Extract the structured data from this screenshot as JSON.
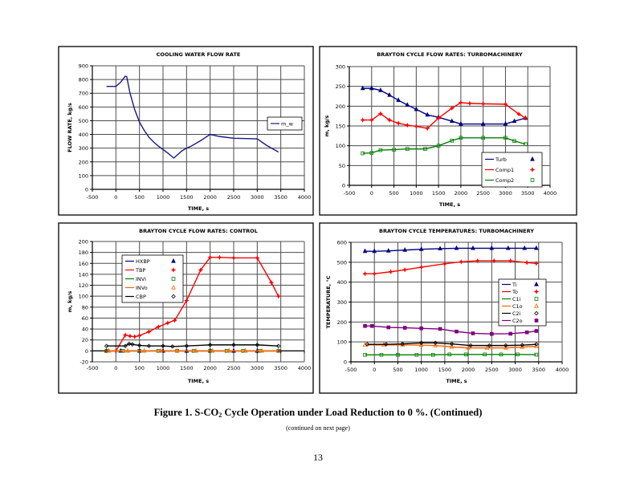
{
  "figure": {
    "caption_parts": [
      "Figure 1. S-CO",
      "2",
      " Cycle Operation under Load Reduction to 0 %.  (Continued)"
    ],
    "continued_note": "(continued on next page)",
    "page_number": "13"
  },
  "chart_data": [
    {
      "type": "line",
      "title": "COOLING WATER FLOW RATE",
      "xlabel": "TIME, s",
      "ylabel": "FLOW RATE, kg/s",
      "xlim": [
        -500,
        4000
      ],
      "ylim": [
        0,
        900
      ],
      "xticks": [
        -500,
        0,
        500,
        1000,
        1500,
        2000,
        2500,
        3000,
        3500,
        4000
      ],
      "yticks": [
        0,
        100,
        200,
        300,
        400,
        500,
        600,
        700,
        800,
        900
      ],
      "grid": true,
      "legend": "right",
      "series": [
        {
          "name": "m_w",
          "color": "#1a1a80",
          "marker": "none",
          "points": [
            [
              -200,
              750
            ],
            [
              0,
              750
            ],
            [
              100,
              780
            ],
            [
              200,
              825
            ],
            [
              230,
              820
            ],
            [
              300,
              700
            ],
            [
              400,
              580
            ],
            [
              500,
              490
            ],
            [
              600,
              430
            ],
            [
              700,
              380
            ],
            [
              800,
              345
            ],
            [
              900,
              315
            ],
            [
              1000,
              290
            ],
            [
              1100,
              265
            ],
            [
              1230,
              228
            ],
            [
              1400,
              280
            ],
            [
              1500,
              300
            ],
            [
              1600,
              315
            ],
            [
              1800,
              355
            ],
            [
              2000,
              400
            ],
            [
              2200,
              385
            ],
            [
              2500,
              372
            ],
            [
              3000,
              368
            ],
            [
              3200,
              320
            ],
            [
              3450,
              272
            ]
          ]
        }
      ]
    },
    {
      "type": "line",
      "title": "BRAYTON CYCLE FLOW RATES: TURBOMACHINERY",
      "xlabel": "TIME, s",
      "ylabel": "m, kg/s",
      "xlim": [
        -500,
        4000
      ],
      "ylim": [
        0,
        300
      ],
      "xticks": [
        -500,
        0,
        500,
        1000,
        1500,
        2000,
        2500,
        3000,
        3500,
        4000
      ],
      "yticks": [
        0,
        50,
        100,
        150,
        200,
        250,
        300
      ],
      "grid": true,
      "legend": "bottom-right",
      "series": [
        {
          "name": "Turb",
          "color": "#000080",
          "marker": "triangle",
          "points": [
            [
              -200,
              245
            ],
            [
              0,
              245
            ],
            [
              200,
              240
            ],
            [
              400,
              228
            ],
            [
              600,
              215
            ],
            [
              800,
              203
            ],
            [
              1000,
              192
            ],
            [
              1250,
              178
            ],
            [
              1500,
              172
            ],
            [
              1800,
              162
            ],
            [
              2000,
              155
            ],
            [
              2500,
              155
            ],
            [
              3000,
              155
            ],
            [
              3200,
              162
            ],
            [
              3450,
              170
            ]
          ]
        },
        {
          "name": "Comp1",
          "color": "#ff0000",
          "marker": "star",
          "points": [
            [
              -200,
              165
            ],
            [
              0,
              165
            ],
            [
              200,
              181
            ],
            [
              400,
              165
            ],
            [
              600,
              157
            ],
            [
              800,
              152
            ],
            [
              1000,
              149
            ],
            [
              1250,
              144
            ],
            [
              1500,
              170
            ],
            [
              1800,
              195
            ],
            [
              2000,
              209
            ],
            [
              2200,
              207
            ],
            [
              2500,
              206
            ],
            [
              3000,
              205
            ],
            [
              3300,
              180
            ],
            [
              3450,
              170
            ]
          ]
        },
        {
          "name": "Comp2",
          "color": "#008000",
          "marker": "square-open",
          "points": [
            [
              -200,
              81
            ],
            [
              0,
              82
            ],
            [
              200,
              89
            ],
            [
              500,
              90
            ],
            [
              800,
              92
            ],
            [
              1200,
              92
            ],
            [
              1500,
              100
            ],
            [
              1800,
              113
            ],
            [
              2000,
              120
            ],
            [
              2500,
              120
            ],
            [
              3000,
              120
            ],
            [
              3200,
              112
            ],
            [
              3450,
              104
            ]
          ]
        }
      ]
    },
    {
      "type": "line",
      "title": "BRAYTON CYCLE FLOW RATES: CONTROL",
      "xlabel": "TIME, s",
      "ylabel": "m, kg/s",
      "xlim": [
        -500,
        4000
      ],
      "ylim": [
        -20,
        200
      ],
      "xticks": [
        -500,
        0,
        500,
        1000,
        1500,
        2000,
        2500,
        3000,
        3500,
        4000
      ],
      "yticks": [
        -20,
        0,
        20,
        40,
        60,
        80,
        100,
        120,
        140,
        160,
        180,
        200
      ],
      "grid": true,
      "legend": "top-left",
      "series": [
        {
          "name": "HXBP",
          "color": "#000080",
          "marker": "triangle",
          "points": [
            [
              -200,
              0
            ],
            [
              100,
              0
            ],
            [
              500,
              0
            ],
            [
              1000,
              0
            ],
            [
              1500,
              0
            ],
            [
              2000,
              0
            ],
            [
              2500,
              0
            ],
            [
              3000,
              0
            ],
            [
              3450,
              0
            ]
          ]
        },
        {
          "name": "TBP",
          "color": "#ff0000",
          "marker": "star",
          "points": [
            [
              -200,
              0
            ],
            [
              0,
              0
            ],
            [
              200,
              29
            ],
            [
              300,
              27
            ],
            [
              400,
              26
            ],
            [
              500,
              28
            ],
            [
              700,
              35
            ],
            [
              900,
              44
            ],
            [
              1100,
              51
            ],
            [
              1250,
              56
            ],
            [
              1500,
              92
            ],
            [
              1800,
              148
            ],
            [
              2000,
              171
            ],
            [
              2200,
              171
            ],
            [
              2500,
              170
            ],
            [
              3000,
              170
            ],
            [
              3300,
              125
            ],
            [
              3450,
              100
            ]
          ]
        },
        {
          "name": "INVi",
          "color": "#008000",
          "marker": "square-open",
          "points": [
            [
              -200,
              0
            ],
            [
              150,
              0
            ],
            [
              500,
              0
            ],
            [
              900,
              0
            ],
            [
              1300,
              0
            ],
            [
              1650,
              0
            ],
            [
              2000,
              0
            ],
            [
              2350,
              0
            ],
            [
              2700,
              0
            ],
            [
              3050,
              0
            ],
            [
              3450,
              0
            ]
          ]
        },
        {
          "name": "INVo",
          "color": "#ff6600",
          "marker": "triangle-open",
          "points": [
            [
              -150,
              0
            ],
            [
              250,
              0
            ],
            [
              600,
              0
            ],
            [
              950,
              0
            ],
            [
              1300,
              0
            ],
            [
              1700,
              0
            ],
            [
              2050,
              0
            ],
            [
              2400,
              0
            ],
            [
              2750,
              0
            ],
            [
              3100,
              0
            ],
            [
              3450,
              0
            ]
          ]
        },
        {
          "name": "CBP",
          "color": "#000000",
          "marker": "diamond-open",
          "points": [
            [
              -200,
              9
            ],
            [
              200,
              9
            ],
            [
              280,
              13
            ],
            [
              350,
              12
            ],
            [
              500,
              10
            ],
            [
              700,
              9
            ],
            [
              1000,
              9
            ],
            [
              1200,
              8
            ],
            [
              1500,
              9
            ],
            [
              2000,
              11
            ],
            [
              2500,
              11
            ],
            [
              3000,
              11
            ],
            [
              3450,
              9
            ]
          ]
        }
      ]
    },
    {
      "type": "line",
      "title": "BRAYTON CYCLE TEMPERATURES: TURBOMACHINERY",
      "xlabel": "TIME, s",
      "ylabel": "TEMPERATURE, °C",
      "xlim": [
        -500,
        4000
      ],
      "ylim": [
        0,
        600
      ],
      "xticks": [
        -500,
        0,
        500,
        1000,
        1500,
        2000,
        2500,
        3000,
        3500,
        4000
      ],
      "yticks": [
        0,
        100,
        200,
        300,
        400,
        500,
        600
      ],
      "grid": true,
      "legend": "right",
      "series": [
        {
          "name": "Ti",
          "color": "#000080",
          "marker": "triangle",
          "points": [
            [
              -200,
              555
            ],
            [
              0,
              555
            ],
            [
              300,
              557
            ],
            [
              650,
              561
            ],
            [
              1000,
              565
            ],
            [
              1400,
              568
            ],
            [
              1750,
              570
            ],
            [
              2100,
              570
            ],
            [
              2500,
              570
            ],
            [
              2850,
              570
            ],
            [
              3200,
              570
            ],
            [
              3450,
              570
            ]
          ]
        },
        {
          "name": "To",
          "color": "#ff0000",
          "marker": "star",
          "points": [
            [
              -200,
              442
            ],
            [
              0,
              442
            ],
            [
              350,
              452
            ],
            [
              650,
              462
            ],
            [
              1000,
              475
            ],
            [
              1500,
              492
            ],
            [
              1850,
              502
            ],
            [
              2200,
              507
            ],
            [
              2550,
              507
            ],
            [
              2900,
              507
            ],
            [
              3250,
              498
            ],
            [
              3450,
              494
            ]
          ]
        },
        {
          "name": "C1i",
          "color": "#008000",
          "marker": "square-open",
          "points": [
            [
              -200,
              35
            ],
            [
              150,
              35
            ],
            [
              500,
              35
            ],
            [
              900,
              35
            ],
            [
              1250,
              35
            ],
            [
              1600,
              37
            ],
            [
              1950,
              37
            ],
            [
              2350,
              37
            ],
            [
              2700,
              37
            ],
            [
              3050,
              37
            ],
            [
              3450,
              36
            ]
          ]
        },
        {
          "name": "C1o",
          "color": "#ff6600",
          "marker": "triangle-open",
          "points": [
            [
              -200,
              85
            ],
            [
              200,
              85
            ],
            [
              600,
              85
            ],
            [
              1000,
              84
            ],
            [
              1300,
              82
            ],
            [
              1650,
              75
            ],
            [
              2000,
              70
            ],
            [
              2400,
              70
            ],
            [
              2800,
              70
            ],
            [
              3150,
              74
            ],
            [
              3450,
              78
            ]
          ]
        },
        {
          "name": "C2i",
          "color": "#000000",
          "marker": "diamond-open",
          "points": [
            [
              -150,
              88
            ],
            [
              250,
              88
            ],
            [
              600,
              90
            ],
            [
              1000,
              95
            ],
            [
              1300,
              95
            ],
            [
              1650,
              90
            ],
            [
              2050,
              82
            ],
            [
              2450,
              82
            ],
            [
              2800,
              82
            ],
            [
              3150,
              84
            ],
            [
              3450,
              88
            ]
          ]
        },
        {
          "name": "C2o",
          "color": "#800080",
          "marker": "square",
          "points": [
            [
              -200,
              180
            ],
            [
              -50,
              180
            ],
            [
              300,
              173
            ],
            [
              650,
              171
            ],
            [
              1000,
              168
            ],
            [
              1400,
              165
            ],
            [
              1750,
              152
            ],
            [
              2100,
              143
            ],
            [
              2500,
              140
            ],
            [
              2900,
              141
            ],
            [
              3250,
              148
            ],
            [
              3450,
              155
            ]
          ]
        }
      ]
    }
  ]
}
